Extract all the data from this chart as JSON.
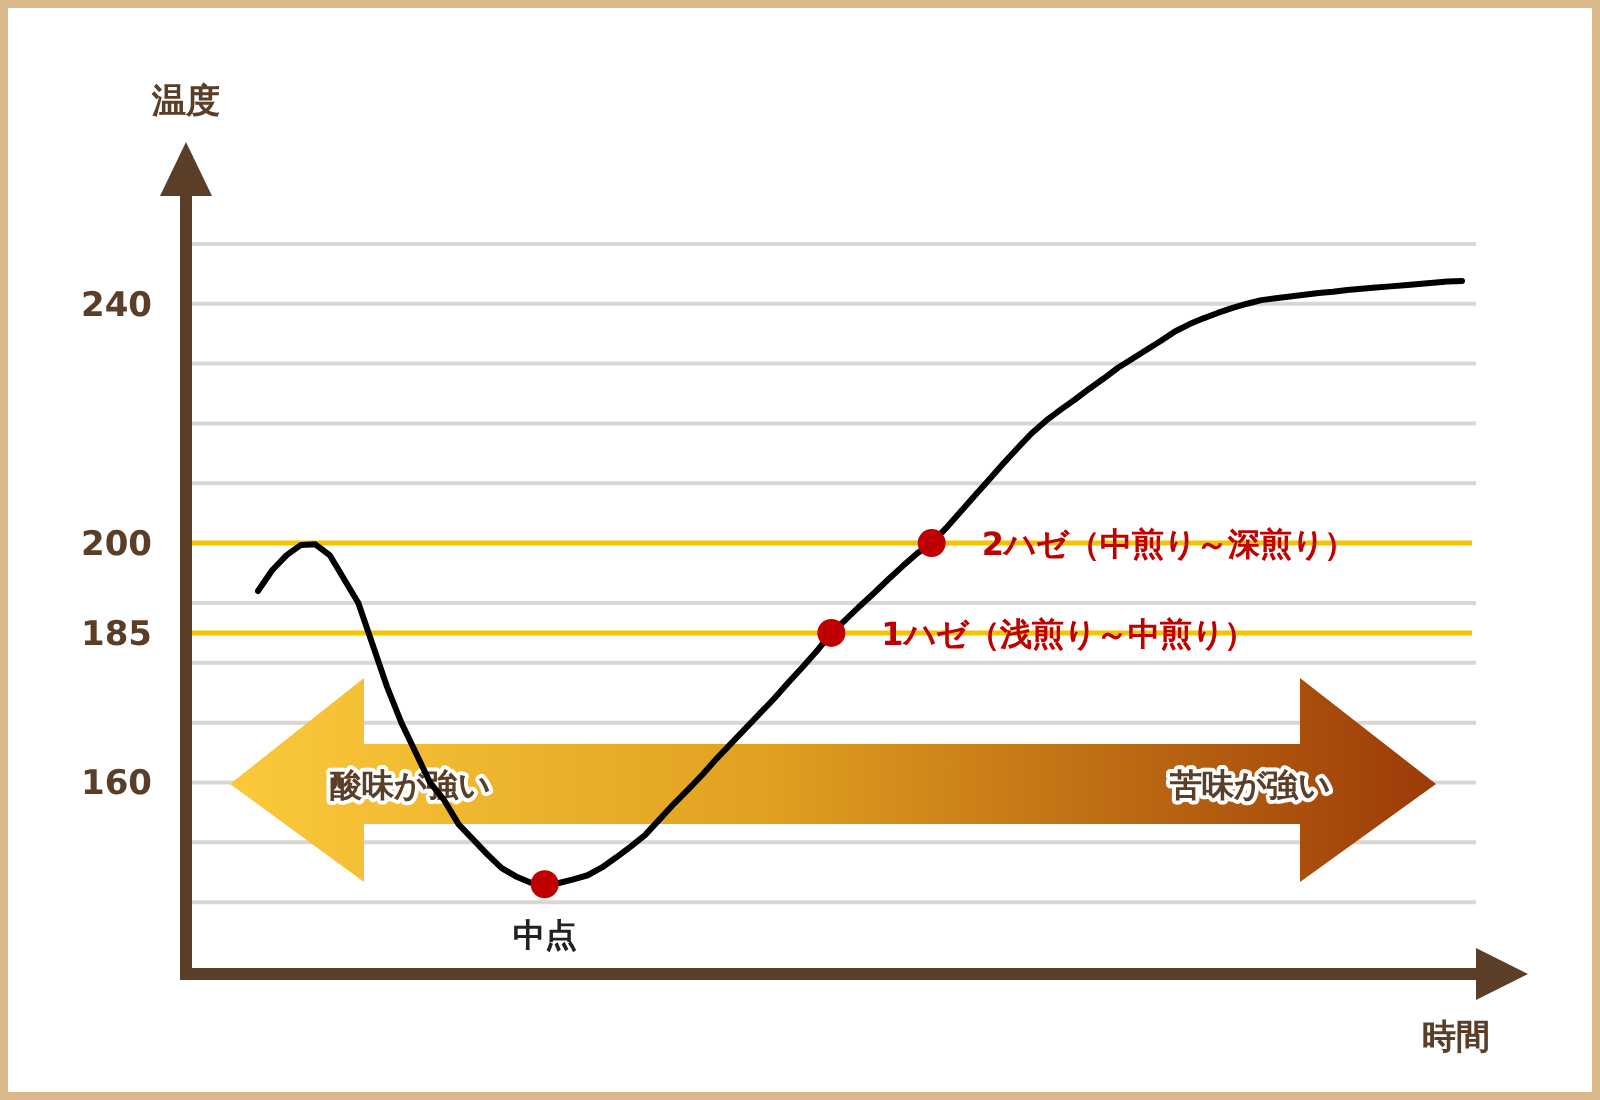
{
  "chart_data": {
    "type": "line",
    "xlabel": "時間",
    "ylabel": "温度",
    "categories": [
      null,
      null,
      null,
      null,
      null,
      null,
      null,
      null,
      null,
      null,
      null,
      null,
      null,
      null,
      null,
      null,
      null,
      null,
      null,
      null,
      null,
      null,
      null,
      null,
      null,
      null,
      null,
      null,
      null,
      null,
      null,
      null,
      null,
      null,
      null,
      null,
      null,
      null,
      null,
      null,
      null,
      null,
      null,
      null,
      null,
      null,
      null,
      null,
      null,
      null,
      null,
      null,
      null,
      null,
      null,
      null,
      null,
      null,
      null,
      null,
      null,
      null,
      null,
      null,
      null,
      null,
      null,
      null,
      null,
      null,
      null,
      null,
      null,
      null,
      null,
      null,
      null,
      null,
      null,
      null,
      null,
      null,
      null,
      null,
      null
    ],
    "series": [
      {
        "type": "line",
        "color": "#000000",
        "marker": "none",
        "values": [
          192,
          195.5,
          198,
          199.7,
          199.8,
          198,
          194,
          190,
          183,
          176,
          170,
          165,
          160,
          157,
          153,
          150.5,
          148,
          145.7,
          144.3,
          143.3,
          143,
          143.2,
          143.8,
          144.5,
          145.8,
          147.5,
          149.3,
          151.2,
          153.8,
          156.4,
          158.8,
          161.3,
          164,
          166.5,
          169,
          171.5,
          174,
          176.7,
          179.3,
          182,
          185,
          187.2,
          189.5,
          191.7,
          194,
          196.2,
          198.3,
          200,
          202.5,
          205.2,
          207.9,
          210.6,
          213.3,
          215.9,
          218.4,
          220.5,
          222.3,
          224,
          225.8,
          227.5,
          229.3,
          230.8,
          232.3,
          233.8,
          235.4,
          236.6,
          237.6,
          238.5,
          239.3,
          240,
          240.6,
          240.9,
          241.2,
          241.5,
          241.8,
          242,
          242.3,
          242.5,
          242.7,
          242.9,
          243.1,
          243.3,
          243.5,
          243.7,
          243.8
        ]
      },
      {
        "type": "scatter",
        "color": "#c00000",
        "marker": "circle",
        "values": [
          null,
          null,
          null,
          null,
          null,
          null,
          null,
          null,
          null,
          null,
          null,
          null,
          null,
          null,
          null,
          null,
          null,
          null,
          null,
          null,
          143,
          null,
          null,
          null,
          null,
          null,
          null,
          null,
          null,
          null,
          null,
          null,
          null,
          null,
          null,
          null,
          null,
          null,
          null,
          null,
          185,
          null,
          null,
          null,
          null,
          null,
          null,
          200,
          null,
          null,
          null,
          null,
          null,
          null,
          null,
          null,
          null,
          null,
          null,
          null,
          null,
          null,
          null,
          null,
          null,
          null,
          null,
          null,
          null,
          null,
          null,
          null,
          null,
          null,
          null,
          null,
          null,
          null,
          null,
          null,
          null,
          null,
          null,
          null,
          null
        ]
      }
    ],
    "ylim": [
      128,
      258
    ],
    "yticks": [
      {
        "value": 140,
        "label": null
      },
      {
        "value": 150,
        "label": null
      },
      160,
      {
        "value": 170,
        "label": null
      },
      {
        "value": 180,
        "label": null
      },
      {
        "value": 190,
        "label": null
      },
      {
        "value": 210,
        "label": null
      },
      {
        "value": 220,
        "label": null
      },
      {
        "value": 230,
        "label": null
      },
      240,
      {
        "value": 250,
        "label": null
      }
    ],
    "grid": "y",
    "ref_lines": [
      {
        "axis": "y",
        "value": 185,
        "label": "185",
        "color": "#f5c400"
      },
      {
        "axis": "y",
        "value": 200,
        "label": "200",
        "color": "#f5c400"
      }
    ],
    "annotations": [
      "中点",
      "1ハゼ（浅煎り～中煎り）",
      "2ハゼ（中煎り～深煎り）",
      "酸味が強い",
      "苦味が強い"
    ]
  }
}
